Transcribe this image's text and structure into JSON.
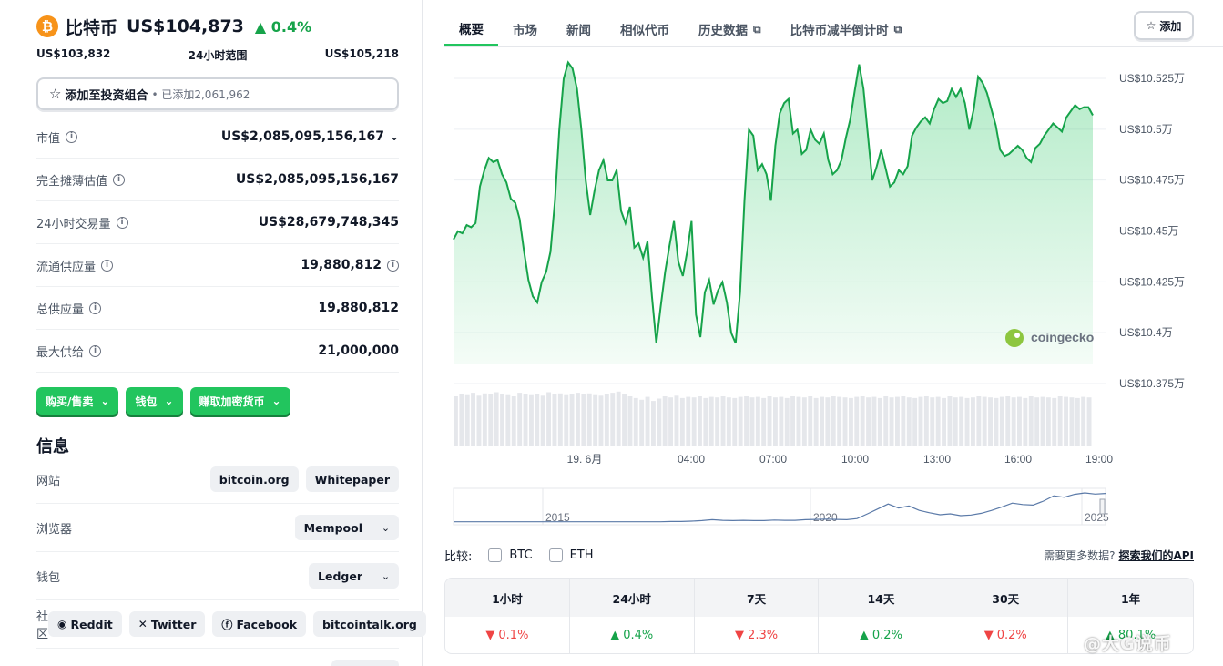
{
  "coin": {
    "name": "比特币",
    "logo": "₿",
    "price": "US$104,873",
    "change": "0.4%",
    "change_dir": "up"
  },
  "range": {
    "low": "US$103,832",
    "label": "24小时范围",
    "high": "US$105,218"
  },
  "portfolio": {
    "label": "添加至投资组合",
    "sub": "• 已添加2,061,962"
  },
  "stats": [
    {
      "label": "市值",
      "value": "US$2,085,095,156,167"
    },
    {
      "label": "完全摊薄估值",
      "value": "US$2,085,095,156,167"
    },
    {
      "label": "24小时交易量",
      "value": "US$28,679,748,345"
    },
    {
      "label": "流通供应量",
      "value": "19,880,812"
    },
    {
      "label": "总供应量",
      "value": "19,880,812"
    },
    {
      "label": "最大供给",
      "value": "21,000,000"
    }
  ],
  "actions": [
    "购买/售卖",
    "钱包",
    "赚取加密货币"
  ],
  "info": {
    "title": "信息",
    "website_label": "网站",
    "websites": [
      "bitcoin.org",
      "Whitepaper"
    ],
    "explorer_label": "浏览器",
    "explorer": "Mempool",
    "wallet_label": "钱包",
    "wallet": "Ledger",
    "community_label": "社区",
    "community": [
      "Reddit",
      "Twitter",
      "Facebook",
      "bitcointalk.org"
    ]
  },
  "tabs": [
    "概要",
    "市场",
    "新闻",
    "相似代币",
    "历史数据",
    "比特币减半倒计时"
  ],
  "add_button": "添加",
  "watermark_brand": "coingecko",
  "compare": {
    "label": "比较:",
    "opt1": "BTC",
    "opt2": "ETH",
    "more": "需要更多数据?",
    "api_link": "探索我们的API"
  },
  "performance": {
    "headers": [
      "1小时",
      "24小时",
      "7天",
      "14天",
      "30天",
      "1年"
    ],
    "values": [
      "0.1%",
      "0.4%",
      "2.3%",
      "0.2%",
      "0.2%",
      "80.1%"
    ],
    "directions": [
      "down",
      "up",
      "down",
      "up",
      "down",
      "up"
    ]
  },
  "overlay_watermark": "@大G说币",
  "colors": {
    "green": "#22c55e",
    "line": "#16a34a",
    "red": "#ef4444",
    "bitcoin": "#f7931a"
  },
  "chart_data": {
    "type": "area",
    "x_ticks": [
      "19. 6月",
      "04:00",
      "07:00",
      "10:00",
      "13:00",
      "16:00",
      "19:00"
    ],
    "y_ticks": [
      "US$10.525万",
      "US$10.5万",
      "US$10.475万",
      "US$10.45万",
      "US$10.425万",
      "US$10.4万",
      "US$10.375万"
    ],
    "ylim": [
      103750,
      105250
    ],
    "price_series": [
      104360,
      104400,
      104390,
      104430,
      104420,
      104440,
      104620,
      104700,
      104760,
      104740,
      104750,
      104680,
      104640,
      104560,
      104540,
      104460,
      104300,
      104160,
      104080,
      104050,
      104150,
      104200,
      104300,
      104550,
      104900,
      105150,
      105230,
      105200,
      105100,
      104900,
      104650,
      104480,
      104600,
      104700,
      104750,
      104650,
      104650,
      104700,
      104500,
      104440,
      104520,
      104320,
      104340,
      104270,
      104350,
      104080,
      103850,
      104030,
      104200,
      104330,
      104450,
      104250,
      104180,
      104300,
      104450,
      103990,
      103880,
      104100,
      104160,
      104040,
      104110,
      104150,
      104050,
      103900,
      103850,
      104100,
      104550,
      104900,
      104870,
      104700,
      104730,
      104680,
      104550,
      104820,
      104980,
      105030,
      105050,
      104880,
      104900,
      104780,
      104800,
      104900,
      104850,
      104830,
      104880,
      104750,
      104680,
      104700,
      104750,
      104860,
      104950,
      105090,
      105220,
      105100,
      104870,
      104650,
      104720,
      104800,
      104710,
      104620,
      104640,
      104700,
      104680,
      104720,
      104870,
      104910,
      104940,
      104960,
      104930,
      105000,
      105050,
      105030,
      105040,
      105100,
      105060,
      105100,
      105030,
      104900,
      105000,
      105160,
      105130,
      105080,
      105000,
      104920,
      104800,
      104770,
      104780,
      104800,
      104820,
      104800,
      104760,
      104740,
      104810,
      104830,
      104870,
      104900,
      104930,
      104910,
      104890,
      104960,
      104990,
      105020,
      105000,
      105010,
      105010,
      104970
    ],
    "volume_series": [
      0.86,
      0.9,
      0.88,
      0.92,
      0.87,
      0.91,
      0.89,
      0.93,
      0.9,
      0.88,
      0.86,
      0.92,
      0.9,
      0.88,
      0.9,
      0.87,
      0.93,
      0.89,
      0.91,
      0.88,
      0.9,
      0.92,
      0.89,
      0.91,
      0.88,
      0.87,
      0.9,
      0.92,
      0.94,
      0.9,
      0.86,
      0.83,
      0.8,
      0.85,
      0.78,
      0.82,
      0.86,
      0.84,
      0.87,
      0.83,
      0.85,
      0.84,
      0.86,
      0.83,
      0.85,
      0.84,
      0.86,
      0.84,
      0.83,
      0.85,
      0.86,
      0.84,
      0.85,
      0.83,
      0.86,
      0.84,
      0.85,
      0.83,
      0.86,
      0.85,
      0.84,
      0.86,
      0.83,
      0.85,
      0.84,
      0.86,
      0.85,
      0.84,
      0.83,
      0.85,
      0.86,
      0.84,
      0.85,
      0.83,
      0.86,
      0.84,
      0.85,
      0.86,
      0.84,
      0.83,
      0.85,
      0.86,
      0.84,
      0.85,
      0.83,
      0.86,
      0.84,
      0.85,
      0.83,
      0.84,
      0.86,
      0.85,
      0.84,
      0.83,
      0.85,
      0.86,
      0.84,
      0.85,
      0.83,
      0.86,
      0.84,
      0.85,
      0.84,
      0.83,
      0.86,
      0.85,
      0.84,
      0.83,
      0.85,
      0.84
    ],
    "overview_ticks": [
      "2015",
      "2020",
      "2025"
    ],
    "overview_series": [
      0.01,
      0.01,
      0.01,
      0.01,
      0.01,
      0.01,
      0.01,
      0.01,
      0.01,
      0.01,
      0.01,
      0.01,
      0.01,
      0.01,
      0.01,
      0.01,
      0.01,
      0.01,
      0.01,
      0.01,
      0.01,
      0.02,
      0.02,
      0.03,
      0.05,
      0.08,
      0.06,
      0.05,
      0.06,
      0.05,
      0.05,
      0.07,
      0.06,
      0.06,
      0.08,
      0.09,
      0.1,
      0.09,
      0.08,
      0.12,
      0.28,
      0.45,
      0.62,
      0.48,
      0.55,
      0.4,
      0.32,
      0.25,
      0.28,
      0.22,
      0.24,
      0.3,
      0.4,
      0.52,
      0.65,
      0.6,
      0.58,
      0.72,
      0.9,
      0.85,
      0.95,
      1.0,
      0.96,
      0.98
    ]
  }
}
